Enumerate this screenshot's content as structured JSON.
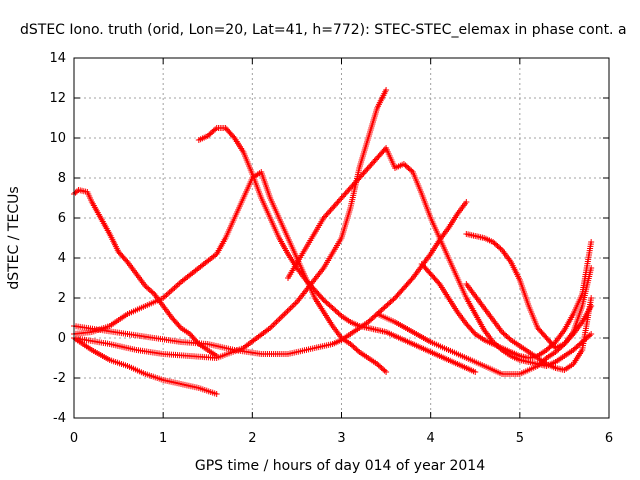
{
  "chart_data": {
    "type": "scatter",
    "title": "dSTEC Iono. truth (orid, Lon=20, Lat=41, h=772): STEC-STEC_elemax in phase cont. a",
    "xlabel": "GPS time / hours of day 014 of year 2014",
    "ylabel": "dSTEC  / TECUs",
    "xlim": [
      0,
      6
    ],
    "ylim": [
      -4,
      14
    ],
    "xticks": [
      0,
      1,
      2,
      3,
      4,
      5,
      6
    ],
    "yticks": [
      -4,
      -2,
      0,
      2,
      4,
      6,
      8,
      10,
      12,
      14
    ],
    "grid": true,
    "marker": "+",
    "color": "#ff0000",
    "series": [
      {
        "x": [
          0.0,
          0.05,
          0.15,
          0.2,
          0.3,
          0.4,
          0.5,
          0.6,
          0.7,
          0.8,
          0.9,
          1.0,
          1.1,
          1.2,
          1.3,
          1.4,
          1.5,
          1.6
        ],
        "y": [
          7.2,
          7.4,
          7.3,
          6.8,
          6.0,
          5.2,
          4.3,
          3.8,
          3.2,
          2.6,
          2.2,
          1.6,
          1.0,
          0.5,
          0.2,
          -0.3,
          -0.6,
          -0.9
        ]
      },
      {
        "x": [
          0.0,
          0.2,
          0.4,
          0.6,
          0.8,
          1.0,
          1.2,
          1.4,
          1.6
        ],
        "y": [
          0.0,
          -0.6,
          -1.1,
          -1.4,
          -1.8,
          -2.1,
          -2.3,
          -2.5,
          -2.8
        ]
      },
      {
        "x": [
          0.0,
          0.2,
          0.4,
          0.6,
          0.8,
          1.0,
          1.2,
          1.4,
          1.6,
          1.7,
          1.8,
          1.9,
          2.0,
          2.1,
          2.2,
          2.3,
          2.4,
          2.5,
          2.6,
          2.7,
          2.8,
          2.9,
          3.0,
          3.1,
          3.2,
          3.3,
          3.4,
          3.5
        ],
        "y": [
          0.2,
          0.3,
          0.6,
          1.2,
          1.6,
          2.0,
          2.8,
          3.5,
          4.2,
          5.0,
          6.0,
          7.0,
          8.0,
          8.3,
          7.0,
          6.0,
          5.0,
          4.0,
          3.0,
          2.0,
          1.3,
          0.6,
          0.0,
          -0.3,
          -0.7,
          -1.0,
          -1.3,
          -1.7
        ]
      },
      {
        "x": [
          0.0,
          0.3,
          0.6,
          0.9,
          1.2,
          1.5,
          1.8,
          2.1,
          2.4,
          2.7,
          2.9,
          3.0,
          3.1,
          3.2,
          3.3,
          3.4,
          3.5,
          3.6,
          3.7,
          3.8,
          3.9,
          4.0,
          4.1,
          4.2,
          4.3,
          4.4
        ],
        "y": [
          0.6,
          0.4,
          0.2,
          0.0,
          -0.2,
          -0.3,
          -0.6,
          -0.8,
          -0.8,
          -0.5,
          -0.3,
          -0.1,
          0.2,
          0.5,
          0.8,
          1.2,
          1.6,
          2.0,
          2.5,
          3.0,
          3.6,
          4.2,
          4.9,
          5.5,
          6.2,
          6.8
        ]
      },
      {
        "x": [
          0.0,
          0.4,
          0.7,
          1.0,
          1.3,
          1.6,
          1.9,
          2.2,
          2.5,
          2.8,
          3.0,
          3.1,
          3.2,
          3.3,
          3.4,
          3.5
        ],
        "y": [
          0.0,
          -0.3,
          -0.6,
          -0.8,
          -0.9,
          -1.0,
          -0.5,
          0.5,
          1.8,
          3.5,
          5.0,
          6.5,
          8.5,
          10.0,
          11.5,
          12.4
        ]
      },
      {
        "x": [
          1.4,
          1.5,
          1.6,
          1.7,
          1.8,
          1.9,
          2.0,
          2.1,
          2.2,
          2.3,
          2.4,
          2.5,
          2.6,
          2.7,
          2.8,
          2.9,
          3.0,
          3.1,
          3.2,
          3.3,
          3.4,
          3.5,
          3.6,
          3.7,
          3.8,
          3.9,
          4.0,
          4.1,
          4.2,
          4.3,
          4.4,
          4.5
        ],
        "y": [
          9.9,
          10.1,
          10.5,
          10.5,
          10.0,
          9.3,
          8.2,
          7.0,
          6.0,
          5.0,
          4.2,
          3.5,
          2.9,
          2.4,
          1.9,
          1.5,
          1.1,
          0.8,
          0.6,
          0.5,
          0.4,
          0.3,
          0.1,
          -0.1,
          -0.3,
          -0.5,
          -0.7,
          -0.9,
          -1.1,
          -1.3,
          -1.5,
          -1.7
        ]
      },
      {
        "x": [
          2.4,
          2.6,
          2.8,
          3.0,
          3.2,
          3.4,
          3.5,
          3.6,
          3.7,
          3.8,
          3.9,
          4.0,
          4.1,
          4.2,
          4.3,
          4.4,
          4.5,
          4.6,
          4.7,
          4.8,
          4.9,
          5.0,
          5.1,
          5.2,
          5.3,
          5.4,
          5.5,
          5.6,
          5.7,
          5.8
        ],
        "y": [
          3.0,
          4.5,
          6.0,
          7.0,
          8.0,
          9.0,
          9.5,
          8.5,
          8.7,
          8.3,
          7.2,
          6.0,
          5.0,
          4.0,
          3.0,
          2.0,
          1.2,
          0.4,
          -0.2,
          -0.6,
          -0.9,
          -1.1,
          -1.2,
          -1.3,
          -1.4,
          -1.2,
          -0.9,
          -0.6,
          -0.2,
          0.2
        ]
      },
      {
        "x": [
          3.4,
          3.6,
          3.8,
          4.0,
          4.2,
          4.4,
          4.6,
          4.8,
          5.0,
          5.2,
          5.3,
          5.4,
          5.5,
          5.6,
          5.7,
          5.8
        ],
        "y": [
          1.2,
          0.8,
          0.3,
          -0.2,
          -0.6,
          -1.0,
          -1.4,
          -1.8,
          -1.8,
          -1.4,
          -1.0,
          -0.7,
          -0.3,
          0.2,
          0.8,
          1.6
        ]
      },
      {
        "x": [
          4.4,
          4.5,
          4.6,
          4.7,
          4.8,
          4.9,
          5.0,
          5.1,
          5.2,
          5.3,
          5.4,
          5.5,
          5.6,
          5.7,
          5.8
        ],
        "y": [
          5.2,
          5.1,
          5.0,
          4.8,
          4.4,
          3.8,
          2.9,
          1.6,
          0.5,
          0.0,
          -0.5,
          -0.3,
          0.3,
          1.6,
          3.5
        ]
      },
      {
        "x": [
          3.9,
          4.0,
          4.1,
          4.2,
          4.3,
          4.4,
          4.5,
          4.6,
          4.7,
          4.8,
          4.9,
          5.0,
          5.1,
          5.2,
          5.3,
          5.4,
          5.5,
          5.6,
          5.7,
          5.8
        ],
        "y": [
          3.7,
          3.2,
          2.7,
          2.0,
          1.3,
          0.7,
          0.2,
          -0.1,
          -0.3,
          -0.5,
          -0.7,
          -0.9,
          -1.0,
          -0.9,
          -0.6,
          -0.2,
          0.4,
          1.2,
          2.2,
          4.8
        ]
      },
      {
        "x": [
          4.4,
          4.5,
          4.6,
          4.7,
          4.8,
          4.9,
          5.0,
          5.1,
          5.2,
          5.3,
          5.4,
          5.5,
          5.6,
          5.7,
          5.8
        ],
        "y": [
          2.7,
          2.1,
          1.5,
          0.9,
          0.3,
          -0.1,
          -0.4,
          -0.7,
          -1.0,
          -1.3,
          -1.5,
          -1.6,
          -1.3,
          -0.6,
          2.0
        ]
      }
    ]
  }
}
